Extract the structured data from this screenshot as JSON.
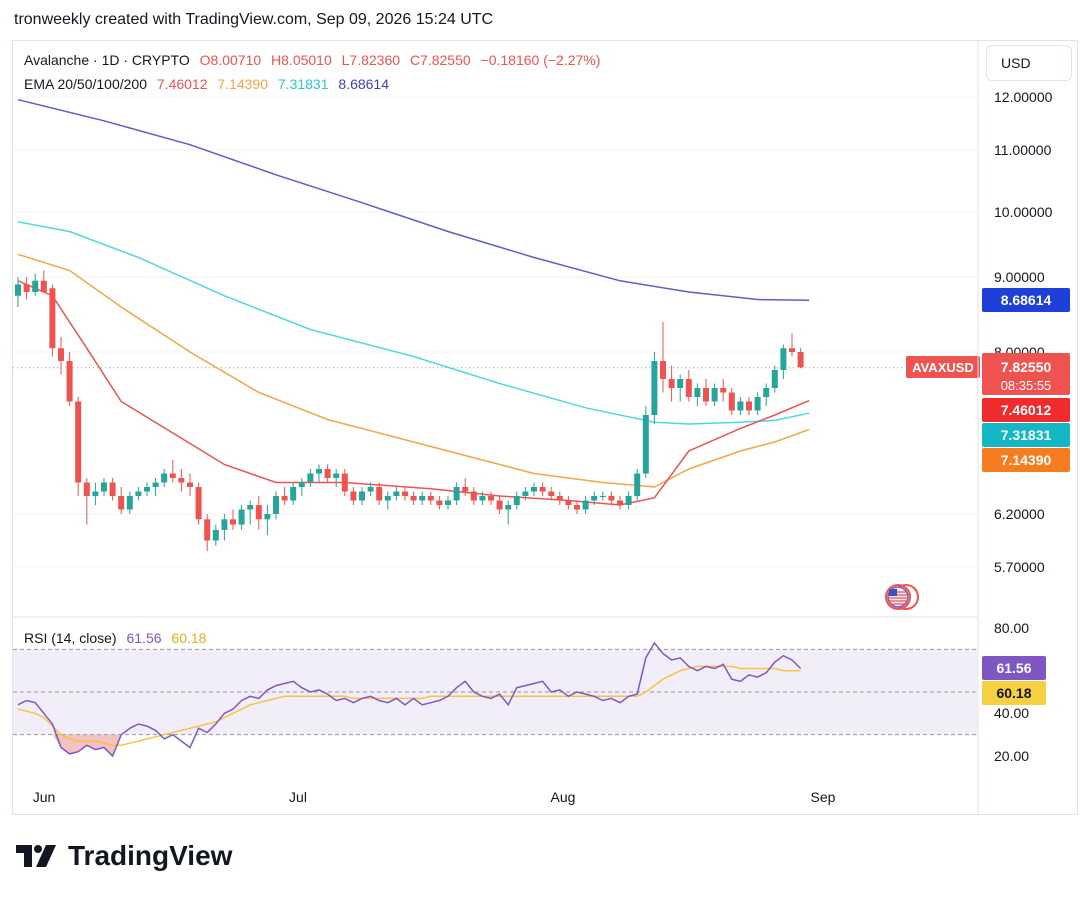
{
  "header": {
    "text": "tronweekly created with TradingView.com, Sep 09, 2026 15:24 UTC"
  },
  "legend": {
    "symbol": "Avalanche · 1D · CRYPTO",
    "open": "O8.00710",
    "high": "H8.05010",
    "low": "L7.82360",
    "close": "C7.82550",
    "change": "−0.18160 (−2.27%)",
    "ema_label": "EMA 20/50/100/200",
    "ema20": "7.46012",
    "ema50": "7.14390",
    "ema100": "7.31831",
    "ema200": "8.68614",
    "rsi_label": "RSI (14, close)",
    "rsi": "61.56",
    "rsi_ma": "60.18"
  },
  "currency_button": "USD",
  "brand": "TradingView",
  "colors": {
    "up": "#26a69a",
    "down": "#ef5350",
    "ema20": "#ef5350",
    "ema50": "#f7a447",
    "ema100": "#4dd8e0",
    "ema200": "#5b5fc7",
    "rsi": "#7e57c2",
    "rsi_ma": "#f5c542"
  },
  "chart_data": {
    "type": "candlestick",
    "symbol": "AVAXUSD",
    "x_labels": [
      "Jun",
      "Jul",
      "Aug",
      "Sep"
    ],
    "y_ticks": [
      "12.00000",
      "11.00000",
      "10.00000",
      "9.00000",
      "8.00000",
      "6.20000",
      "5.70000"
    ],
    "price_tags": {
      "ema200": "8.68614",
      "last": "7.82550",
      "countdown": "08:35:55",
      "ema20": "7.46012",
      "ema100": "7.31831",
      "ema50": "7.14390"
    },
    "candles": [
      [
        8.75,
        9.0,
        8.6,
        8.9
      ],
      [
        8.9,
        9.0,
        8.7,
        8.8
      ],
      [
        8.8,
        9.05,
        8.75,
        8.95
      ],
      [
        8.95,
        9.1,
        8.8,
        8.8
      ],
      [
        8.85,
        8.9,
        7.95,
        8.05
      ],
      [
        8.05,
        8.2,
        7.75,
        7.9
      ],
      [
        7.9,
        8.0,
        7.4,
        7.45
      ],
      [
        7.45,
        7.5,
        6.4,
        6.55
      ],
      [
        6.55,
        6.6,
        6.1,
        6.4
      ],
      [
        6.4,
        6.55,
        6.3,
        6.45
      ],
      [
        6.45,
        6.6,
        6.4,
        6.55
      ],
      [
        6.55,
        6.6,
        6.35,
        6.4
      ],
      [
        6.4,
        6.5,
        6.2,
        6.25
      ],
      [
        6.25,
        6.45,
        6.2,
        6.4
      ],
      [
        6.4,
        6.5,
        6.35,
        6.45
      ],
      [
        6.45,
        6.55,
        6.4,
        6.5
      ],
      [
        6.5,
        6.6,
        6.4,
        6.55
      ],
      [
        6.55,
        6.7,
        6.5,
        6.65
      ],
      [
        6.65,
        6.8,
        6.55,
        6.6
      ],
      [
        6.6,
        6.7,
        6.45,
        6.55
      ],
      [
        6.55,
        6.65,
        6.4,
        6.5
      ],
      [
        6.5,
        6.55,
        6.1,
        6.15
      ],
      [
        6.15,
        6.2,
        5.85,
        5.95
      ],
      [
        5.95,
        6.1,
        5.9,
        6.05
      ],
      [
        6.05,
        6.2,
        5.95,
        6.15
      ],
      [
        6.15,
        6.25,
        6.05,
        6.1
      ],
      [
        6.1,
        6.3,
        6.05,
        6.25
      ],
      [
        6.25,
        6.35,
        6.1,
        6.3
      ],
      [
        6.3,
        6.4,
        6.05,
        6.15
      ],
      [
        6.15,
        6.3,
        6.0,
        6.2
      ],
      [
        6.2,
        6.45,
        6.15,
        6.4
      ],
      [
        6.4,
        6.5,
        6.3,
        6.35
      ],
      [
        6.35,
        6.55,
        6.3,
        6.5
      ],
      [
        6.5,
        6.6,
        6.4,
        6.55
      ],
      [
        6.55,
        6.7,
        6.5,
        6.65
      ],
      [
        6.65,
        6.75,
        6.55,
        6.7
      ],
      [
        6.7,
        6.75,
        6.55,
        6.6
      ],
      [
        6.6,
        6.7,
        6.5,
        6.65
      ],
      [
        6.65,
        6.7,
        6.4,
        6.45
      ],
      [
        6.45,
        6.5,
        6.3,
        6.35
      ],
      [
        6.35,
        6.5,
        6.3,
        6.45
      ],
      [
        6.45,
        6.55,
        6.4,
        6.5
      ],
      [
        6.5,
        6.55,
        6.3,
        6.35
      ],
      [
        6.35,
        6.45,
        6.25,
        6.4
      ],
      [
        6.4,
        6.5,
        6.35,
        6.45
      ],
      [
        6.45,
        6.5,
        6.35,
        6.4
      ],
      [
        6.4,
        6.45,
        6.3,
        6.35
      ],
      [
        6.35,
        6.45,
        6.3,
        6.4
      ],
      [
        6.4,
        6.45,
        6.3,
        6.35
      ],
      [
        6.35,
        6.4,
        6.25,
        6.3
      ],
      [
        6.3,
        6.4,
        6.25,
        6.35
      ],
      [
        6.35,
        6.55,
        6.3,
        6.5
      ],
      [
        6.5,
        6.6,
        6.4,
        6.45
      ],
      [
        6.45,
        6.5,
        6.3,
        6.35
      ],
      [
        6.35,
        6.45,
        6.3,
        6.4
      ],
      [
        6.4,
        6.45,
        6.3,
        6.35
      ],
      [
        6.35,
        6.4,
        6.2,
        6.25
      ],
      [
        6.25,
        6.35,
        6.1,
        6.3
      ],
      [
        6.3,
        6.45,
        6.25,
        6.4
      ],
      [
        6.4,
        6.5,
        6.35,
        6.45
      ],
      [
        6.45,
        6.55,
        6.4,
        6.5
      ],
      [
        6.5,
        6.55,
        6.4,
        6.45
      ],
      [
        6.45,
        6.5,
        6.35,
        6.4
      ],
      [
        6.4,
        6.45,
        6.3,
        6.35
      ],
      [
        6.35,
        6.4,
        6.25,
        6.3
      ],
      [
        6.3,
        6.35,
        6.2,
        6.25
      ],
      [
        6.25,
        6.4,
        6.2,
        6.35
      ],
      [
        6.35,
        6.45,
        6.3,
        6.4
      ],
      [
        6.4,
        6.45,
        6.35,
        6.4
      ],
      [
        6.4,
        6.45,
        6.3,
        6.35
      ],
      [
        6.35,
        6.4,
        6.25,
        6.3
      ],
      [
        6.3,
        6.45,
        6.25,
        6.4
      ],
      [
        6.4,
        6.7,
        6.35,
        6.65
      ],
      [
        6.65,
        7.4,
        6.6,
        7.3
      ],
      [
        7.3,
        8.0,
        7.2,
        7.9
      ],
      [
        7.9,
        8.4,
        7.55,
        7.7
      ],
      [
        7.7,
        7.85,
        7.45,
        7.6
      ],
      [
        7.6,
        7.75,
        7.45,
        7.7
      ],
      [
        7.7,
        7.8,
        7.45,
        7.5
      ],
      [
        7.5,
        7.65,
        7.4,
        7.6
      ],
      [
        7.6,
        7.7,
        7.4,
        7.45
      ],
      [
        7.45,
        7.65,
        7.4,
        7.6
      ],
      [
        7.6,
        7.7,
        7.45,
        7.55
      ],
      [
        7.55,
        7.6,
        7.3,
        7.35
      ],
      [
        7.35,
        7.5,
        7.3,
        7.45
      ],
      [
        7.45,
        7.5,
        7.3,
        7.35
      ],
      [
        7.35,
        7.55,
        7.3,
        7.5
      ],
      [
        7.5,
        7.65,
        7.4,
        7.6
      ],
      [
        7.6,
        7.85,
        7.55,
        7.8
      ],
      [
        7.8,
        8.1,
        7.7,
        8.05
      ],
      [
        8.05,
        8.25,
        7.95,
        8.0
      ],
      [
        8.0,
        8.05,
        7.82,
        7.83
      ]
    ],
    "ema20": [
      [
        0,
        8.95
      ],
      [
        4,
        8.75
      ],
      [
        8,
        8.05
      ],
      [
        12,
        7.45
      ],
      [
        18,
        7.1
      ],
      [
        24,
        6.75
      ],
      [
        30,
        6.55
      ],
      [
        38,
        6.55
      ],
      [
        48,
        6.48
      ],
      [
        56,
        6.4
      ],
      [
        64,
        6.35
      ],
      [
        70,
        6.3
      ],
      [
        74,
        6.38
      ],
      [
        78,
        6.9
      ],
      [
        84,
        7.15
      ],
      [
        88,
        7.3
      ],
      [
        92,
        7.46
      ]
    ],
    "ema50": [
      [
        0,
        9.35
      ],
      [
        6,
        9.1
      ],
      [
        12,
        8.6
      ],
      [
        20,
        8.0
      ],
      [
        28,
        7.55
      ],
      [
        36,
        7.25
      ],
      [
        44,
        7.05
      ],
      [
        52,
        6.85
      ],
      [
        60,
        6.65
      ],
      [
        68,
        6.55
      ],
      [
        74,
        6.5
      ],
      [
        78,
        6.7
      ],
      [
        84,
        6.9
      ],
      [
        88,
        7.0
      ],
      [
        92,
        7.14
      ]
    ],
    "ema100": [
      [
        0,
        9.85
      ],
      [
        6,
        9.7
      ],
      [
        14,
        9.3
      ],
      [
        24,
        8.75
      ],
      [
        34,
        8.3
      ],
      [
        46,
        7.95
      ],
      [
        56,
        7.65
      ],
      [
        66,
        7.38
      ],
      [
        74,
        7.22
      ],
      [
        78,
        7.2
      ],
      [
        84,
        7.22
      ],
      [
        88,
        7.24
      ],
      [
        92,
        7.32
      ]
    ],
    "ema200": [
      [
        0,
        11.95
      ],
      [
        10,
        11.55
      ],
      [
        20,
        11.1
      ],
      [
        30,
        10.6
      ],
      [
        40,
        10.15
      ],
      [
        50,
        9.7
      ],
      [
        60,
        9.3
      ],
      [
        70,
        8.95
      ],
      [
        78,
        8.8
      ],
      [
        86,
        8.7
      ],
      [
        92,
        8.69
      ]
    ],
    "rsi": {
      "label": "RSI (14, close)",
      "y_ticks": [
        "80.00",
        "40.00",
        "20.00"
      ],
      "bands": [
        70,
        50,
        30
      ],
      "rsi": [
        44,
        46,
        45,
        40,
        35,
        24,
        21,
        22,
        25,
        23,
        24,
        20,
        30,
        33,
        35,
        34,
        32,
        28,
        30,
        27,
        24,
        33,
        31,
        35,
        40,
        42,
        46,
        48,
        47,
        51,
        53,
        54,
        55,
        52,
        50,
        51,
        49,
        46,
        47,
        45,
        47,
        48,
        46,
        45,
        47,
        44,
        47,
        44,
        45,
        46,
        48,
        52,
        55,
        50,
        48,
        47,
        49,
        44,
        52,
        53,
        54,
        55,
        50,
        51,
        48,
        50,
        49,
        48,
        46,
        47,
        45,
        48,
        49,
        66,
        73,
        68,
        65,
        66,
        62,
        60,
        62,
        61,
        63,
        56,
        55,
        58,
        57,
        59,
        64,
        67,
        65,
        61
      ],
      "ma": [
        42,
        41,
        40,
        38,
        34,
        30,
        28,
        27,
        27,
        27,
        26,
        25,
        25,
        26,
        27,
        28,
        29,
        30,
        31,
        32,
        33,
        34,
        35,
        36,
        38,
        40,
        42,
        44,
        45,
        46,
        47,
        48,
        48,
        48,
        48,
        48,
        48,
        48,
        48,
        47,
        47,
        47,
        47,
        47,
        47,
        47,
        47,
        47,
        48,
        48,
        48,
        48,
        48,
        48,
        48,
        48,
        48,
        48,
        48,
        48,
        48,
        48,
        48,
        48,
        48,
        48,
        48,
        48,
        48,
        48,
        48,
        48,
        48,
        50,
        53,
        56,
        58,
        60,
        61,
        62,
        62,
        62,
        62,
        62,
        61,
        61,
        61,
        61,
        61,
        60,
        60,
        60
      ]
    }
  }
}
